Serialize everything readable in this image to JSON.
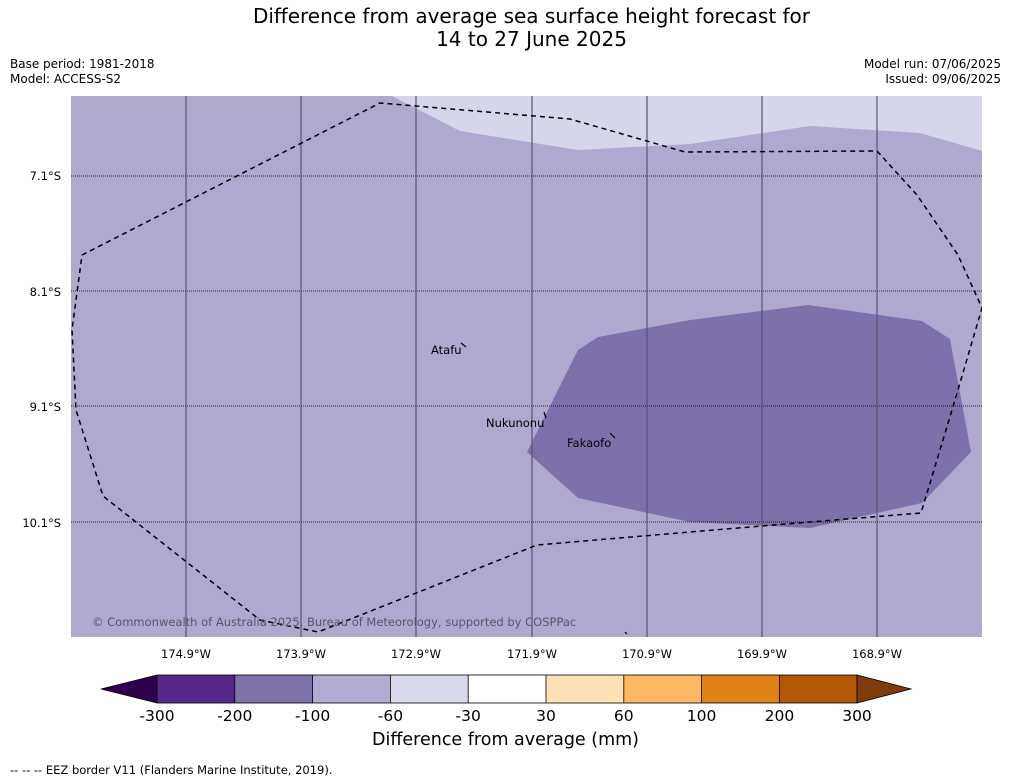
{
  "title": {
    "line1": "Difference from average sea surface height forecast for",
    "line2": "14 to 27 June 2025"
  },
  "meta": {
    "base_period": "Base period: 1981-2018",
    "model": "Model: ACCESS-S2",
    "model_run": "Model run: 07/06/2025",
    "issued": "Issued: 09/06/2025"
  },
  "map": {
    "copyright": "© Commonwealth of Australia 2025, Bureau of Meteorology, supported by COSPPac",
    "lat_labels": [
      "7.1°S",
      "8.1°S",
      "9.1°S",
      "10.1°S"
    ],
    "lon_labels": [
      "174.9°W",
      "173.9°W",
      "172.9°W",
      "171.9°W",
      "170.9°W",
      "169.9°W",
      "168.9°W"
    ],
    "places": [
      {
        "name": "Atafu"
      },
      {
        "name": "Nukunonu"
      },
      {
        "name": "Fakaofo"
      }
    ],
    "zone_colors": {
      "background": "#afa9d0",
      "light_zone": "#d6d6ea",
      "dark_zone": "#7e70aa"
    }
  },
  "colorbar": {
    "title": "Difference from average (mm)",
    "tick_labels": [
      "-300",
      "-200",
      "-100",
      "-60",
      "-30",
      "30",
      "60",
      "100",
      "200",
      "300"
    ],
    "colors": [
      "#2d004b",
      "#542788",
      "#8073ac",
      "#b2abd2",
      "#d8daeb",
      "#ffffff",
      "#fee0b6",
      "#fdb863",
      "#e08214",
      "#b35806",
      "#7f3b08"
    ]
  },
  "footer": {
    "legend_symbol": "--  --  --",
    "legend_text": "EEZ border V11 (Flanders Marine Institute, 2019)."
  }
}
